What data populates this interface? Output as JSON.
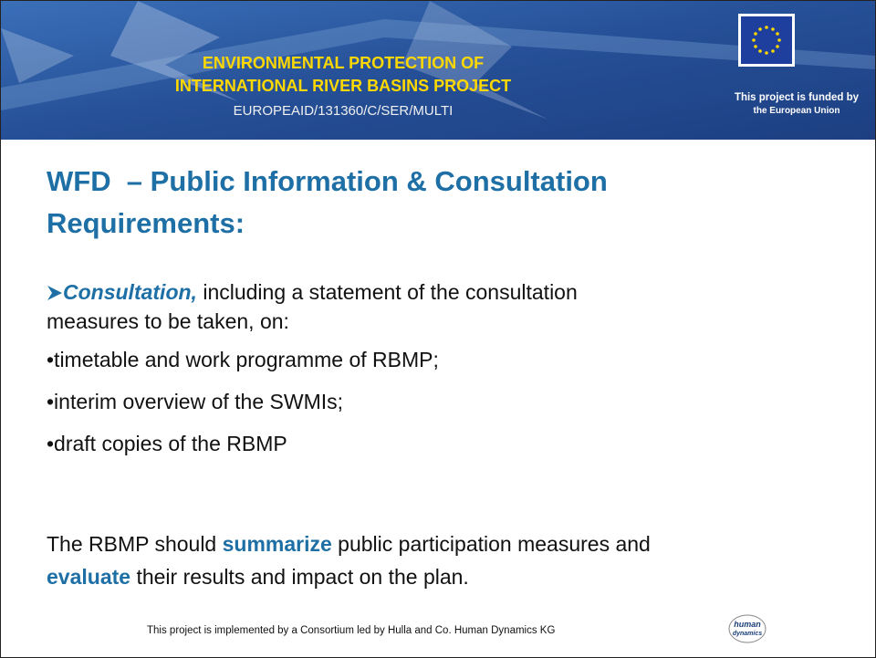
{
  "header": {
    "project_title": [
      "ENVIRONMENTAL PROTECTION OF",
      "INTERNATIONAL RIVER BASINS PROJECT"
    ],
    "project_code": "EUROPEAID/131360/C/SER/MULTI",
    "funding_note": [
      "This project is funded by",
      "the European Union"
    ]
  },
  "slide": {
    "title": [
      "WFD  – Public Information & Consultation",
      "Requirements:"
    ],
    "intro": {
      "emphasis": "Consultation,",
      "lines": [
        " including a statement of the consultation",
        "measures to be taken, on:"
      ]
    },
    "bullets": [
      "•timetable and work programme of RBMP;",
      "•interim overview of the SWMIs;",
      "•draft copies of the RBMP"
    ],
    "closing": {
      "line1": [
        "The RBMP should ",
        "summarize",
        " public participation measures and"
      ],
      "line2": [
        "evaluate",
        " their results and impact on the plan."
      ]
    }
  },
  "footer": {
    "note": "This project is implemented by a Consortium led by Hulla and Co. Human Dynamics KG",
    "logo": [
      "human",
      "dynamics"
    ]
  }
}
